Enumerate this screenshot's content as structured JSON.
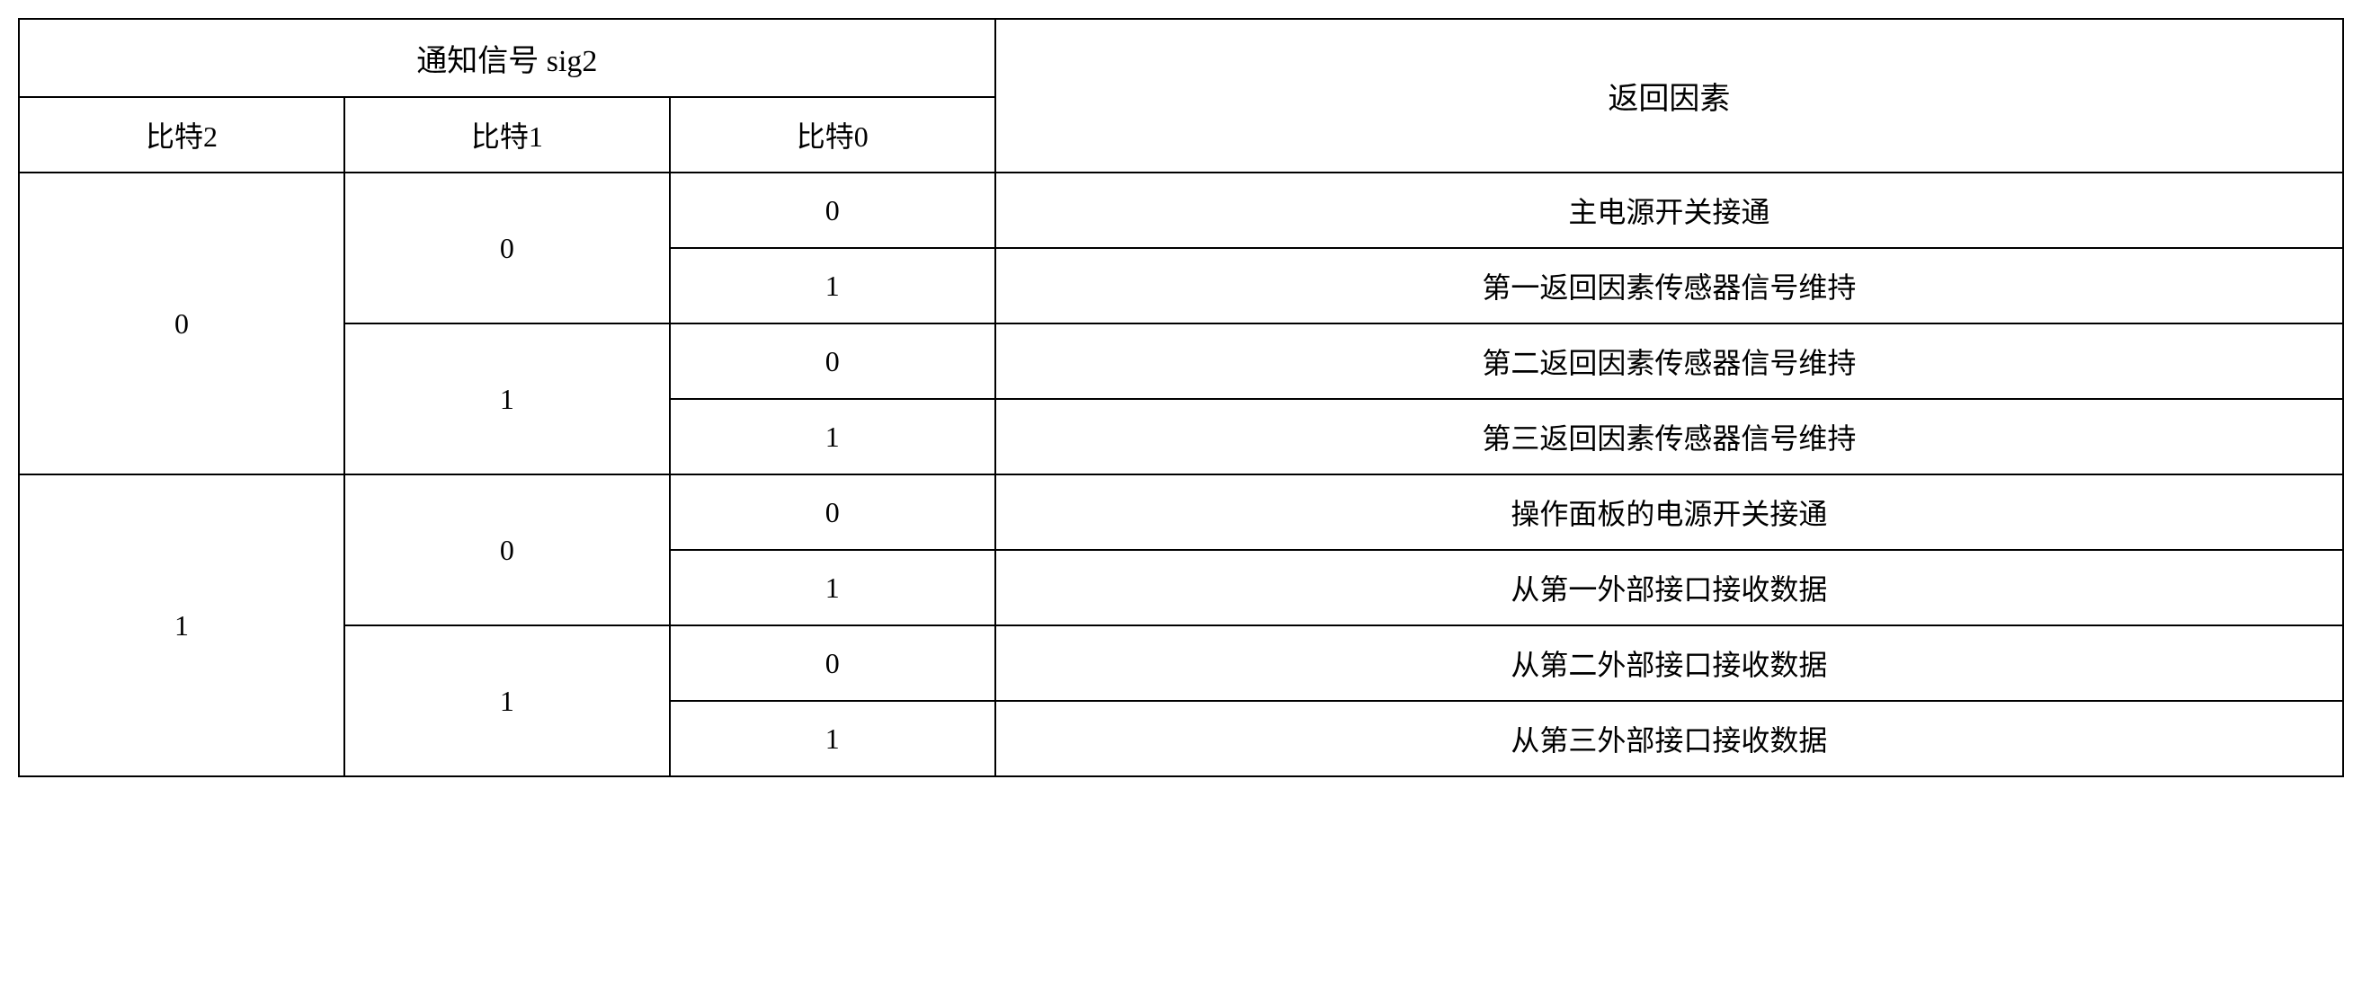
{
  "table": {
    "header": {
      "sig2_label": "通知信号 sig2",
      "return_factor_label": "返回因素",
      "bit2_label": "比特2",
      "bit1_label": "比特1",
      "bit0_label": "比特0"
    },
    "rows": [
      {
        "bit2": "0",
        "bit1": "0",
        "bit0": "0",
        "factor": "主电源开关接通"
      },
      {
        "bit2": "0",
        "bit1": "0",
        "bit0": "1",
        "factor": "第一返回因素传感器信号维持"
      },
      {
        "bit2": "0",
        "bit1": "1",
        "bit0": "0",
        "factor": "第二返回因素传感器信号维持"
      },
      {
        "bit2": "0",
        "bit1": "1",
        "bit0": "1",
        "factor": "第三返回因素传感器信号维持"
      },
      {
        "bit2": "1",
        "bit1": "0",
        "bit0": "0",
        "factor": "操作面板的电源开关接通"
      },
      {
        "bit2": "1",
        "bit1": "0",
        "bit0": "1",
        "factor": "从第一外部接口接收数据"
      },
      {
        "bit2": "1",
        "bit1": "1",
        "bit0": "0",
        "factor": "从第二外部接口接收数据"
      },
      {
        "bit2": "1",
        "bit1": "1",
        "bit0": "1",
        "factor": "从第三外部接口接收数据"
      }
    ],
    "styling": {
      "border_color": "#000000",
      "border_width": 2,
      "background_color": "#ffffff",
      "text_color": "#000000",
      "font_family": "SimSun",
      "header_fontsize": 34,
      "cell_fontsize": 32,
      "column_widths": {
        "bit2": "14%",
        "bit1": "14%",
        "bit0": "14%",
        "factor": "58%"
      }
    }
  }
}
